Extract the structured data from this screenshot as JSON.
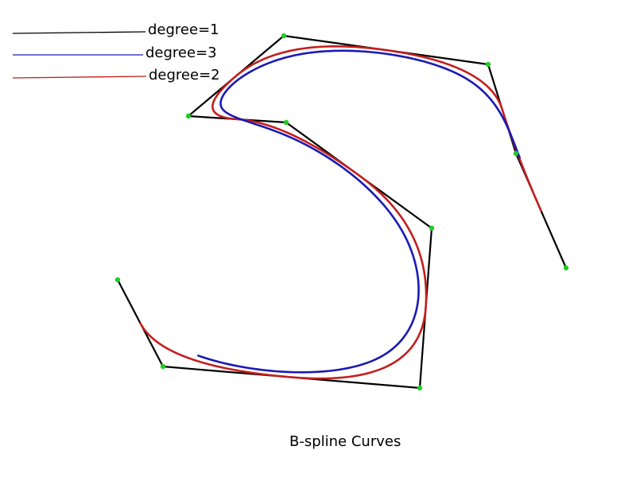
{
  "caption": "B-spline Curves",
  "legend": [
    {
      "label": "degree=1",
      "color": "#000000"
    },
    {
      "label": "degree=3",
      "color": "#1a1ab4"
    },
    {
      "label": "degree=2",
      "color": "#c41e1e"
    }
  ],
  "colors": {
    "control_points": "#22cc22",
    "background": "#ffffff"
  },
  "chart_data": {
    "type": "line",
    "title": "B-spline Curves",
    "control_points": [
      [
        148,
        352
      ],
      [
        205,
        461
      ],
      [
        528,
        488
      ],
      [
        543,
        287
      ],
      [
        360,
        154
      ],
      [
        237,
        146
      ],
      [
        357,
        45
      ],
      [
        614,
        81
      ],
      [
        649,
        193
      ],
      [
        712,
        337
      ]
    ],
    "series": [
      {
        "name": "degree=1",
        "degree": 1,
        "color": "#000000"
      },
      {
        "name": "degree=3",
        "degree": 3,
        "color": "#1a1ab4"
      },
      {
        "name": "degree=2",
        "degree": 2,
        "color": "#c41e1e"
      }
    ]
  }
}
